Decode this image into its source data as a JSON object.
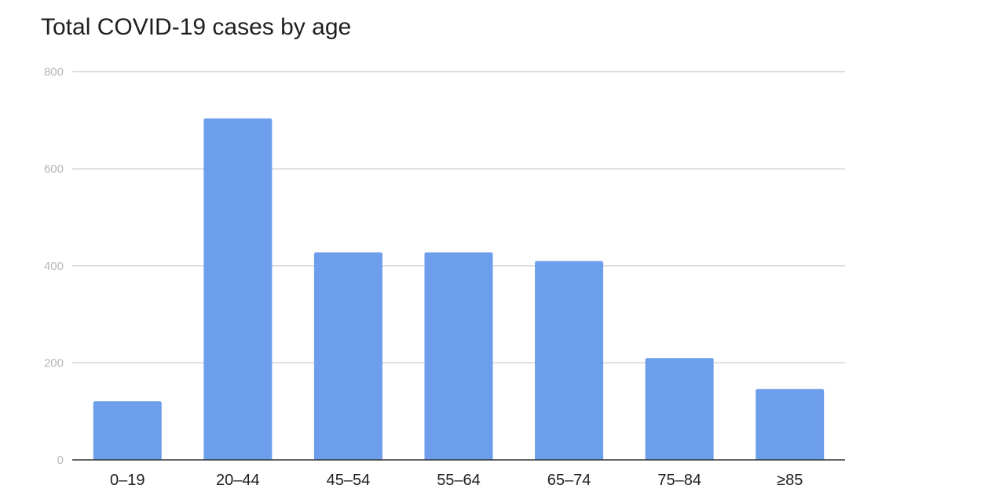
{
  "chart_data": {
    "type": "bar",
    "title": "Total COVID-19 cases by age",
    "categories": [
      "0–19",
      "20–44",
      "45–54",
      "55–64",
      "65–74",
      "75–84",
      "≥85"
    ],
    "values": [
      121,
      704,
      428,
      428,
      410,
      210,
      146
    ],
    "xlabel": "",
    "ylabel": "",
    "ylim": [
      0,
      800
    ],
    "yticks": [
      "0",
      "200",
      "400",
      "600",
      "800"
    ],
    "grid": true,
    "legend": "none",
    "colors": {
      "bar": "#6d9eeb",
      "grid": "#cccccc",
      "axis": "#333333",
      "ytick": "#b7b7b7",
      "xtick": "#202020"
    }
  }
}
